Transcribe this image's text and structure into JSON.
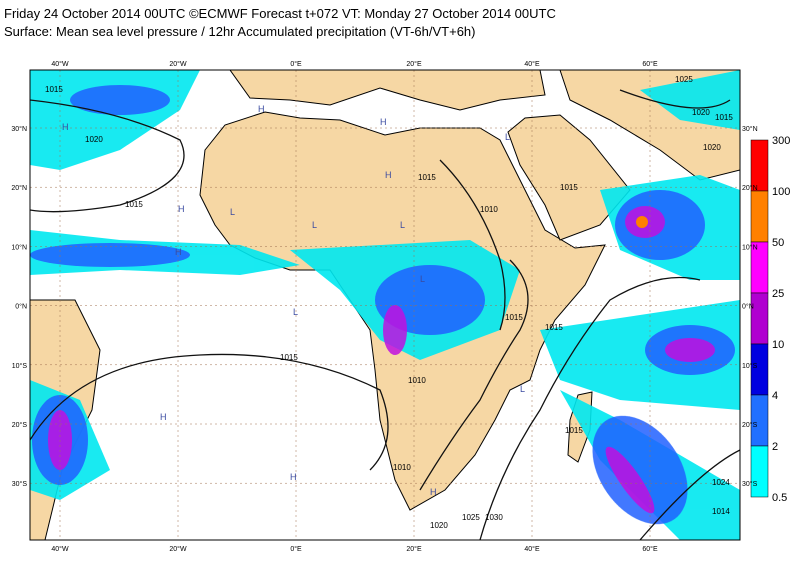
{
  "header": {
    "title": "Friday 24 October 2014 00UTC ©ECMWF Forecast t+072 VT: Monday 27 October 2014 00UTC",
    "subtitle": "Surface: Mean sea level pressure / 12hr Accumulated precipitation (VT-6h/VT+6h)"
  },
  "map": {
    "lon_labels": [
      "40°W",
      "20°W",
      "0°E",
      "20°E",
      "40°E",
      "60°E"
    ],
    "lat_labels": [
      "30°N",
      "20°N",
      "10°N",
      "0°N",
      "10°S",
      "20°S",
      "30°S"
    ],
    "isobar_labels": [
      "1015",
      "1020",
      "1015",
      "1015",
      "1010",
      "1015",
      "1015",
      "1010",
      "1015",
      "1015",
      "1010",
      "1020",
      "1025",
      "1030",
      "1015",
      "1024",
      "1014",
      "1020",
      "1025",
      "1020",
      "1015"
    ],
    "pressure_markers": [
      "H",
      "H",
      "L",
      "H",
      "L",
      "L",
      "L",
      "H",
      "H",
      "L",
      "H",
      "L",
      "H",
      "H",
      "L",
      "H"
    ]
  },
  "colorbar": {
    "labels": [
      "300",
      "100",
      "50",
      "25",
      "10",
      "4",
      "2",
      "0.5"
    ]
  }
}
